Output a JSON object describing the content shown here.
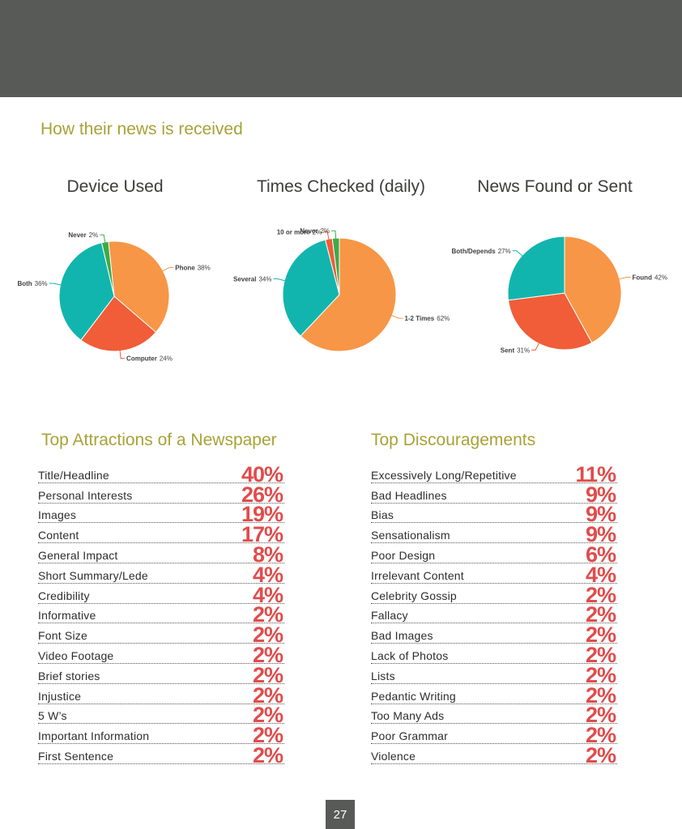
{
  "section_title": "How their news is received",
  "chart_data": [
    {
      "type": "pie",
      "title": "Device Used",
      "slices": [
        {
          "label": "Phone",
          "value": 38,
          "display": "38%",
          "color": "#f79646"
        },
        {
          "label": "Computer",
          "value": 24,
          "display": "24%",
          "color": "#f05d38"
        },
        {
          "label": "Both",
          "value": 36,
          "display": "36%",
          "color": "#12b5ad"
        },
        {
          "label": "Never",
          "value": 2,
          "display": "2%",
          "color": "#3daa48"
        }
      ]
    },
    {
      "type": "pie",
      "title": "Times Checked (daily)",
      "slices": [
        {
          "label": "1-2 Times",
          "value": 62,
          "display": "62%",
          "color": "#f79646"
        },
        {
          "label": "Several",
          "value": 34,
          "display": "34%",
          "color": "#12b5ad"
        },
        {
          "label": "10 or more",
          "value": 2,
          "display": "2%",
          "color": "#f05d38"
        },
        {
          "label": "Never",
          "value": 2,
          "display": "2%",
          "color": "#3daa48"
        }
      ]
    },
    {
      "type": "pie",
      "title": "News Found or Sent",
      "slices": [
        {
          "label": "Found",
          "value": 42,
          "display": "42%",
          "color": "#f79646"
        },
        {
          "label": "Sent",
          "value": 31,
          "display": "31%",
          "color": "#f05d38"
        },
        {
          "label": "Both/Depends",
          "value": 27,
          "display": "27%",
          "color": "#12b5ad"
        }
      ]
    }
  ],
  "attractions": {
    "heading": "Top Attractions of a Newspaper",
    "items": [
      {
        "label": "Title/Headline",
        "pct": "40%"
      },
      {
        "label": "Personal Interests",
        "pct": "26%"
      },
      {
        "label": "Images",
        "pct": "19%"
      },
      {
        "label": "Content",
        "pct": "17%"
      },
      {
        "label": "General Impact",
        "pct": "8%"
      },
      {
        "label": "Short Summary/Lede",
        "pct": "4%"
      },
      {
        "label": "Credibility",
        "pct": "4%"
      },
      {
        "label": "Informative",
        "pct": "2%"
      },
      {
        "label": "Font Size",
        "pct": "2%"
      },
      {
        "label": "Video Footage",
        "pct": "2%"
      },
      {
        "label": "Brief stories",
        "pct": "2%"
      },
      {
        "label": "Injustice",
        "pct": "2%"
      },
      {
        "label": "5 W’s",
        "pct": "2%"
      },
      {
        "label": "Important Information",
        "pct": "2%"
      },
      {
        "label": "First Sentence",
        "pct": "2%"
      }
    ]
  },
  "discouragements": {
    "heading": "Top Discouragements",
    "items": [
      {
        "label": "Excessively Long/Repetitive",
        "pct": "11%"
      },
      {
        "label": "Bad Headlines",
        "pct": "9%"
      },
      {
        "label": "Bias",
        "pct": "9%"
      },
      {
        "label": "Sensationalism",
        "pct": "9%"
      },
      {
        "label": "Poor Design",
        "pct": "6%"
      },
      {
        "label": "Irrelevant Content",
        "pct": "4%"
      },
      {
        "label": "Celebrity Gossip",
        "pct": "2%"
      },
      {
        "label": "Fallacy",
        "pct": "2%"
      },
      {
        "label": "Bad Images",
        "pct": "2%"
      },
      {
        "label": "Lack of Photos",
        "pct": "2%"
      },
      {
        "label": "Lists",
        "pct": "2%"
      },
      {
        "label": "Pedantic Writing",
        "pct": "2%"
      },
      {
        "label": "Too Many Ads",
        "pct": "2%"
      },
      {
        "label": "Poor Grammar",
        "pct": "2%"
      },
      {
        "label": "Violence",
        "pct": "2%"
      }
    ]
  },
  "page_number": "27"
}
